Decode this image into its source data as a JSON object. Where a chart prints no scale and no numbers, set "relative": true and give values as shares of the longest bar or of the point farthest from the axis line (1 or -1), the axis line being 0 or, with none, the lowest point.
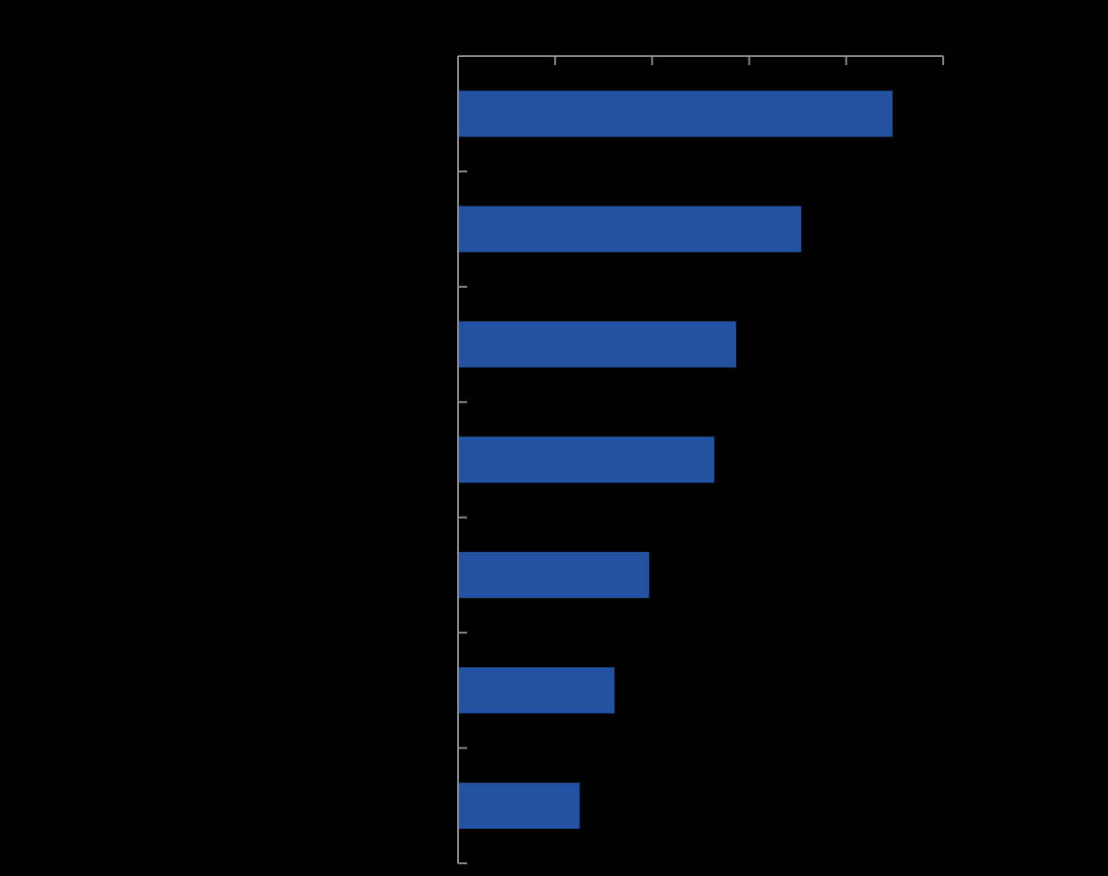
{
  "chart_data": {
    "type": "bar",
    "orientation": "horizontal",
    "relative": true,
    "categories": [
      null,
      null,
      null,
      null,
      null,
      null,
      null
    ],
    "values": [
      1,
      0.79,
      0.64,
      0.59,
      0.44,
      0.36,
      0.28
    ],
    "color": "#2452a3"
  }
}
